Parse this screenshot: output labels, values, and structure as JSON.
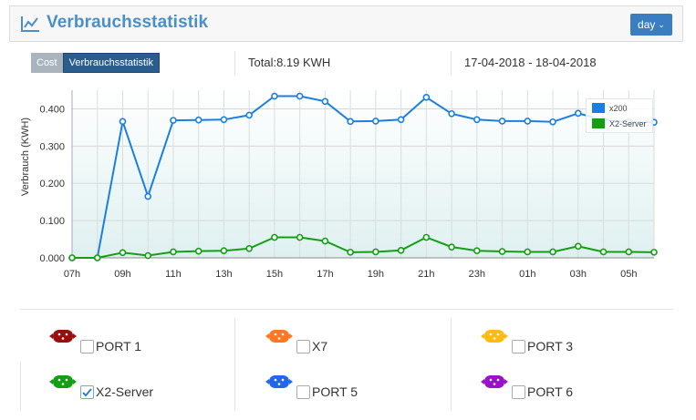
{
  "header": {
    "title": "Verbrauchsstatistik",
    "period_button": "day",
    "accent": "#4a8fc8"
  },
  "tabs": [
    {
      "label": "Cost",
      "active": false
    },
    {
      "label": "Verbrauchsstatistik",
      "active": true
    }
  ],
  "summary": {
    "total": "Total:8.19 KWH",
    "date_range": "17-04-2018 - 18-04-2018"
  },
  "chart_data": {
    "type": "line",
    "ylabel": "Verbrauch (KWH)",
    "xlabel": "",
    "ylim": [
      0,
      0.45
    ],
    "y_ticks": [
      "0.000",
      "0.100",
      "0.200",
      "0.300",
      "0.400"
    ],
    "x_tick_labels": [
      "07h",
      "09h",
      "11h",
      "13h",
      "15h",
      "17h",
      "19h",
      "21h",
      "23h",
      "01h",
      "03h",
      "05h"
    ],
    "x": [
      "07h",
      "08h",
      "09h",
      "10h",
      "11h",
      "12h",
      "13h",
      "14h",
      "15h",
      "16h",
      "17h",
      "18h",
      "19h",
      "20h",
      "21h",
      "22h",
      "23h",
      "00h",
      "01h",
      "02h",
      "03h",
      "04h",
      "05h",
      "06h"
    ],
    "grid": true,
    "legend_position": "top-right",
    "series": [
      {
        "name": "x200",
        "color": "#1a7fe0",
        "values": [
          0,
          0,
          0.366,
          0.165,
          0.369,
          0.37,
          0.371,
          0.383,
          0.434,
          0.434,
          0.42,
          0.366,
          0.367,
          0.371,
          0.431,
          0.387,
          0.371,
          0.367,
          0.367,
          0.365,
          0.388,
          0.37,
          0.365,
          0.364
        ]
      },
      {
        "name": "X2-Server",
        "color": "#12a012",
        "values": [
          0,
          0,
          0.014,
          0.006,
          0.016,
          0.018,
          0.019,
          0.025,
          0.055,
          0.055,
          0.045,
          0.015,
          0.016,
          0.02,
          0.055,
          0.029,
          0.019,
          0.017,
          0.016,
          0.016,
          0.031,
          0.016,
          0.016,
          0.015
        ]
      }
    ]
  },
  "ports": [
    {
      "label": "PORT 1",
      "color": "#9b0e0e",
      "checked": false
    },
    {
      "label": "X7",
      "color": "#ff7722",
      "checked": false
    },
    {
      "label": "PORT 3",
      "color": "#ffbb11",
      "checked": false
    },
    {
      "label": "X2-Server",
      "color": "#12a012",
      "checked": true
    },
    {
      "label": "PORT 5",
      "color": "#2266ee",
      "checked": false
    },
    {
      "label": "PORT 6",
      "color": "#9911cc",
      "checked": false
    }
  ]
}
